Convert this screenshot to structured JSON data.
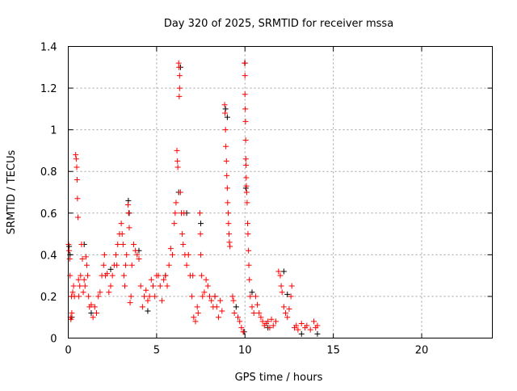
{
  "chart_data": {
    "type": "scatter",
    "title": "Day 320 of 2025, SRMTID for receiver mssa",
    "xlabel": "GPS time / hours",
    "ylabel": "SRMTID / TECUs",
    "xlim": [
      0,
      24
    ],
    "ylim": [
      0,
      1.4
    ],
    "xticks": [
      0,
      5,
      10,
      15,
      20
    ],
    "xtick_labels": [
      "0",
      "5",
      "10",
      "15",
      "20"
    ],
    "yticks": [
      0,
      0.2,
      0.4,
      0.6,
      0.8,
      1.0,
      1.2,
      1.4
    ],
    "ytick_labels": [
      "0",
      "0.2",
      "0.4",
      "0.6",
      "0.8",
      "1",
      "1.2",
      "1.4"
    ],
    "grid": true,
    "series": [
      {
        "name": "black",
        "color": "#000000",
        "marker": "+",
        "points": [
          [
            0.05,
            0.44
          ],
          [
            0.1,
            0.4
          ],
          [
            0.2,
            0.1
          ],
          [
            0.9,
            0.45
          ],
          [
            1.3,
            0.12
          ],
          [
            2.4,
            0.33
          ],
          [
            3.4,
            0.66
          ],
          [
            3.45,
            0.6
          ],
          [
            4.0,
            0.42
          ],
          [
            4.5,
            0.13
          ],
          [
            5.5,
            0.3
          ],
          [
            6.25,
            0.7
          ],
          [
            6.35,
            1.3
          ],
          [
            6.7,
            0.6
          ],
          [
            7.5,
            0.55
          ],
          [
            8.3,
            0.2
          ],
          [
            8.9,
            1.1
          ],
          [
            9.0,
            1.06
          ],
          [
            9.5,
            0.15
          ],
          [
            9.95,
            0.03
          ],
          [
            10.0,
            1.32
          ],
          [
            10.05,
            0.72
          ],
          [
            10.4,
            0.22
          ],
          [
            11.3,
            0.05
          ],
          [
            12.2,
            0.32
          ],
          [
            12.4,
            0.21
          ],
          [
            13.2,
            0.02
          ],
          [
            14.1,
            0.02
          ]
        ]
      },
      {
        "name": "red",
        "color": "#ff0000",
        "marker": "+",
        "points": [
          [
            0.02,
            0.45
          ],
          [
            0.05,
            0.42
          ],
          [
            0.08,
            0.38
          ],
          [
            0.1,
            0.3
          ],
          [
            0.12,
            0.1
          ],
          [
            0.15,
            0.09
          ],
          [
            0.18,
            0.2
          ],
          [
            0.2,
            0.12
          ],
          [
            0.25,
            0.22
          ],
          [
            0.3,
            0.25
          ],
          [
            0.35,
            0.2
          ],
          [
            0.42,
            0.88
          ],
          [
            0.45,
            0.86
          ],
          [
            0.48,
            0.82
          ],
          [
            0.5,
            0.76
          ],
          [
            0.52,
            0.67
          ],
          [
            0.55,
            0.58
          ],
          [
            0.58,
            0.28
          ],
          [
            0.6,
            0.2
          ],
          [
            0.65,
            0.25
          ],
          [
            0.7,
            0.3
          ],
          [
            0.75,
            0.45
          ],
          [
            0.8,
            0.38
          ],
          [
            0.85,
            0.22
          ],
          [
            0.9,
            0.28
          ],
          [
            0.95,
            0.25
          ],
          [
            1.0,
            0.39
          ],
          [
            1.05,
            0.35
          ],
          [
            1.1,
            0.3
          ],
          [
            1.15,
            0.2
          ],
          [
            1.2,
            0.15
          ],
          [
            1.3,
            0.16
          ],
          [
            1.4,
            0.1
          ],
          [
            1.5,
            0.15
          ],
          [
            1.6,
            0.12
          ],
          [
            1.7,
            0.2
          ],
          [
            1.8,
            0.22
          ],
          [
            1.9,
            0.3
          ],
          [
            2.0,
            0.35
          ],
          [
            2.05,
            0.4
          ],
          [
            2.1,
            0.3
          ],
          [
            2.2,
            0.31
          ],
          [
            2.3,
            0.22
          ],
          [
            2.4,
            0.25
          ],
          [
            2.5,
            0.3
          ],
          [
            2.6,
            0.35
          ],
          [
            2.7,
            0.4
          ],
          [
            2.75,
            0.35
          ],
          [
            2.8,
            0.45
          ],
          [
            2.9,
            0.5
          ],
          [
            3.0,
            0.55
          ],
          [
            3.05,
            0.5
          ],
          [
            3.1,
            0.45
          ],
          [
            3.15,
            0.3
          ],
          [
            3.2,
            0.25
          ],
          [
            3.25,
            0.35
          ],
          [
            3.3,
            0.4
          ],
          [
            3.38,
            0.64
          ],
          [
            3.42,
            0.6
          ],
          [
            3.45,
            0.53
          ],
          [
            3.5,
            0.17
          ],
          [
            3.55,
            0.2
          ],
          [
            3.6,
            0.35
          ],
          [
            3.7,
            0.45
          ],
          [
            3.8,
            0.42
          ],
          [
            3.9,
            0.4
          ],
          [
            4.0,
            0.38
          ],
          [
            4.1,
            0.25
          ],
          [
            4.2,
            0.15
          ],
          [
            4.3,
            0.2
          ],
          [
            4.4,
            0.23
          ],
          [
            4.5,
            0.18
          ],
          [
            4.6,
            0.2
          ],
          [
            4.7,
            0.28
          ],
          [
            4.8,
            0.25
          ],
          [
            4.9,
            0.2
          ],
          [
            5.0,
            0.3
          ],
          [
            5.1,
            0.3
          ],
          [
            5.2,
            0.25
          ],
          [
            5.3,
            0.18
          ],
          [
            5.4,
            0.28
          ],
          [
            5.5,
            0.3
          ],
          [
            5.6,
            0.25
          ],
          [
            5.7,
            0.35
          ],
          [
            5.8,
            0.43
          ],
          [
            5.9,
            0.4
          ],
          [
            6.0,
            0.55
          ],
          [
            6.05,
            0.6
          ],
          [
            6.1,
            0.65
          ],
          [
            6.15,
            0.9
          ],
          [
            6.18,
            0.85
          ],
          [
            6.2,
            0.82
          ],
          [
            6.25,
            1.32
          ],
          [
            6.27,
            1.3
          ],
          [
            6.3,
            1.26
          ],
          [
            6.3,
            1.2
          ],
          [
            6.28,
            1.16
          ],
          [
            6.35,
            0.7
          ],
          [
            6.4,
            0.6
          ],
          [
            6.45,
            0.5
          ],
          [
            6.5,
            0.45
          ],
          [
            6.55,
            0.6
          ],
          [
            6.6,
            0.4
          ],
          [
            6.7,
            0.35
          ],
          [
            6.8,
            0.4
          ],
          [
            6.9,
            0.3
          ],
          [
            7.0,
            0.2
          ],
          [
            7.05,
            0.3
          ],
          [
            7.1,
            0.1
          ],
          [
            7.2,
            0.08
          ],
          [
            7.3,
            0.15
          ],
          [
            7.35,
            0.12
          ],
          [
            7.45,
            0.6
          ],
          [
            7.48,
            0.5
          ],
          [
            7.5,
            0.4
          ],
          [
            7.55,
            0.3
          ],
          [
            7.6,
            0.2
          ],
          [
            7.7,
            0.22
          ],
          [
            7.8,
            0.28
          ],
          [
            7.9,
            0.25
          ],
          [
            8.0,
            0.2
          ],
          [
            8.1,
            0.18
          ],
          [
            8.2,
            0.15
          ],
          [
            8.3,
            0.2
          ],
          [
            8.4,
            0.15
          ],
          [
            8.5,
            0.1
          ],
          [
            8.6,
            0.18
          ],
          [
            8.7,
            0.13
          ],
          [
            8.85,
            1.12
          ],
          [
            8.87,
            1.08
          ],
          [
            8.9,
            1.0
          ],
          [
            8.92,
            0.92
          ],
          [
            8.95,
            0.85
          ],
          [
            8.97,
            0.78
          ],
          [
            9.0,
            0.72
          ],
          [
            9.02,
            0.65
          ],
          [
            9.05,
            0.6
          ],
          [
            9.07,
            0.55
          ],
          [
            9.1,
            0.5
          ],
          [
            9.12,
            0.46
          ],
          [
            9.15,
            0.44
          ],
          [
            9.3,
            0.2
          ],
          [
            9.35,
            0.18
          ],
          [
            9.4,
            0.12
          ],
          [
            9.6,
            0.1
          ],
          [
            9.7,
            0.08
          ],
          [
            9.8,
            0.05
          ],
          [
            9.9,
            0.03
          ],
          [
            9.98,
            1.32
          ],
          [
            10.0,
            1.26
          ],
          [
            10.0,
            1.17
          ],
          [
            10.02,
            1.1
          ],
          [
            10.03,
            1.04
          ],
          [
            10.04,
            0.95
          ],
          [
            10.05,
            0.86
          ],
          [
            10.06,
            0.83
          ],
          [
            10.07,
            0.77
          ],
          [
            10.08,
            0.73
          ],
          [
            10.1,
            0.7
          ],
          [
            10.12,
            0.65
          ],
          [
            10.15,
            0.55
          ],
          [
            10.17,
            0.5
          ],
          [
            10.2,
            0.42
          ],
          [
            10.22,
            0.35
          ],
          [
            10.25,
            0.28
          ],
          [
            10.3,
            0.2
          ],
          [
            10.4,
            0.15
          ],
          [
            10.5,
            0.12
          ],
          [
            10.6,
            0.2
          ],
          [
            10.7,
            0.16
          ],
          [
            10.8,
            0.12
          ],
          [
            10.9,
            0.1
          ],
          [
            11.0,
            0.08
          ],
          [
            11.1,
            0.06
          ],
          [
            11.2,
            0.07
          ],
          [
            11.3,
            0.08
          ],
          [
            11.4,
            0.05
          ],
          [
            11.5,
            0.09
          ],
          [
            11.6,
            0.06
          ],
          [
            11.75,
            0.08
          ],
          [
            11.9,
            0.32
          ],
          [
            12.0,
            0.3
          ],
          [
            12.05,
            0.25
          ],
          [
            12.1,
            0.22
          ],
          [
            12.2,
            0.15
          ],
          [
            12.3,
            0.12
          ],
          [
            12.4,
            0.1
          ],
          [
            12.5,
            0.14
          ],
          [
            12.6,
            0.2
          ],
          [
            12.65,
            0.25
          ],
          [
            12.8,
            0.05
          ],
          [
            12.9,
            0.06
          ],
          [
            13.0,
            0.04
          ],
          [
            13.2,
            0.07
          ],
          [
            13.4,
            0.05
          ],
          [
            13.5,
            0.06
          ],
          [
            13.7,
            0.04
          ],
          [
            13.9,
            0.08
          ],
          [
            14.0,
            0.05
          ],
          [
            14.1,
            0.06
          ]
        ]
      }
    ]
  }
}
